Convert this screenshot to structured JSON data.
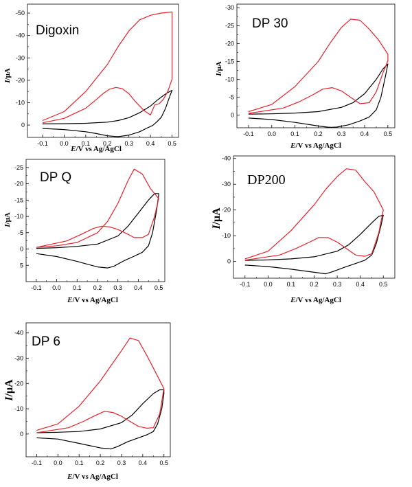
{
  "colors": {
    "cathodic_curve": "#000000",
    "anodic_curve": "#e8202a",
    "frame": "#000000"
  },
  "chart_data": [
    {
      "type": "line",
      "title": "Digoxin",
      "xlabel": {
        "italic": "E",
        "rest": "/V vs Ag/AgCl"
      },
      "ylabel": {
        "italic": "I",
        "rest": "/μA"
      },
      "xlim": [
        -0.17,
        0.53
      ],
      "ylim": [
        5.5,
        -54
      ],
      "xticks": [
        -0.1,
        0.0,
        0.1,
        0.2,
        0.3,
        0.4,
        0.5
      ],
      "xtick_labels": [
        "-0.1",
        "0.0",
        "0.1",
        "0.2",
        "0.3",
        "0.4",
        "0.5"
      ],
      "yticks": [
        0,
        -10,
        -20,
        -30,
        -40,
        -50
      ],
      "ytick_labels": [
        "0",
        "-10",
        "-20",
        "-30",
        "-40",
        "-50"
      ],
      "series": [
        {
          "color": "black",
          "x": [
            -0.1,
            0.0,
            0.1,
            0.2,
            0.25,
            0.3,
            0.35,
            0.4,
            0.43,
            0.46,
            0.48,
            0.5,
            0.5,
            0.49,
            0.47,
            0.45,
            0.43,
            0.41,
            0.38,
            0.35,
            0.3,
            0.25,
            0.2,
            0.15,
            0.1,
            0.0,
            -0.1
          ],
          "y": [
            -0.5,
            -0.6,
            -0.8,
            -1.3,
            -2,
            -3.3,
            -5.5,
            -8.5,
            -11,
            -13.2,
            -14.5,
            -15.5,
            -15.5,
            -13,
            -7.5,
            -3.5,
            -1.5,
            0.2,
            1.5,
            3,
            4.5,
            5.2,
            4.8,
            3.8,
            3,
            2,
            1.5
          ]
        },
        {
          "color": "red",
          "x": [
            -0.1,
            0.0,
            0.1,
            0.2,
            0.25,
            0.3,
            0.35,
            0.4,
            0.45,
            0.5,
            0.5,
            0.48,
            0.46,
            0.44,
            0.42,
            0.4,
            0.37,
            0.33,
            0.3,
            0.27,
            0.24,
            0.21,
            0.18,
            0.15,
            0.1,
            0.0,
            -0.1
          ],
          "y": [
            -2,
            -6,
            -15,
            -27,
            -35,
            -42,
            -47,
            -49,
            -50,
            -50.5,
            -20.5,
            -15,
            -11.5,
            -9.5,
            -9,
            -4.5,
            -6.5,
            -10.5,
            -14,
            -16.2,
            -16.8,
            -16,
            -14,
            -11.5,
            -7.5,
            -3,
            -1
          ]
        }
      ]
    },
    {
      "type": "line",
      "title": "DP 30",
      "xlabel": {
        "italic": "E",
        "rest": "/V vs Ag/AgCl"
      },
      "ylabel": {
        "italic": "I",
        "rest": "/μA"
      },
      "xlim": [
        -0.15,
        0.53
      ],
      "ylim": [
        3.5,
        -31
      ],
      "xticks": [
        -0.1,
        0.0,
        0.1,
        0.2,
        0.3,
        0.4,
        0.5
      ],
      "xtick_labels": [
        "-0.1",
        "0.0",
        "0.1",
        "0.2",
        "0.3",
        "0.4",
        "0.5"
      ],
      "yticks": [
        0,
        -5,
        -10,
        -15,
        -20,
        -25,
        -30
      ],
      "ytick_labels": [
        "0",
        "-5",
        "-10",
        "-15",
        "-20",
        "-25",
        "-30"
      ],
      "series": [
        {
          "color": "black",
          "x": [
            -0.1,
            0.0,
            0.1,
            0.2,
            0.3,
            0.35,
            0.4,
            0.45,
            0.48,
            0.5,
            0.5,
            0.49,
            0.47,
            0.45,
            0.42,
            0.38,
            0.33,
            0.28,
            0.25,
            0.2,
            0.1,
            0.0,
            -0.1
          ],
          "y": [
            -0.3,
            -0.4,
            -0.6,
            -1,
            -2.2,
            -3.5,
            -6,
            -10,
            -13,
            -14.3,
            -14.3,
            -11,
            -5,
            -1.5,
            0.5,
            1.6,
            2.7,
            3.3,
            3.4,
            3,
            2,
            1.2,
            0.8
          ]
        },
        {
          "color": "red",
          "x": [
            -0.1,
            0.0,
            0.1,
            0.2,
            0.25,
            0.3,
            0.34,
            0.38,
            0.42,
            0.46,
            0.5,
            0.5,
            0.48,
            0.45,
            0.42,
            0.38,
            0.34,
            0.3,
            0.26,
            0.22,
            0.18,
            0.12,
            0.05,
            -0.1
          ],
          "y": [
            -1,
            -3,
            -8,
            -15,
            -20,
            -24.5,
            -26.8,
            -26.5,
            -24,
            -21,
            -17,
            -15.2,
            -12,
            -6.5,
            -3.5,
            -3.2,
            -5,
            -6.8,
            -7.7,
            -7.3,
            -5.8,
            -3.8,
            -2,
            -0.5
          ]
        }
      ]
    },
    {
      "type": "line",
      "title": "DP Q",
      "xlabel": {
        "italic": "E",
        "rest": "/V vs Ag/AgCl"
      },
      "ylabel": {
        "italic": "I",
        "rest": "/μA"
      },
      "xlim": [
        -0.15,
        0.53
      ],
      "ylim": [
        10,
        -27.5
      ],
      "xticks": [
        -0.1,
        0.0,
        0.1,
        0.2,
        0.3,
        0.4,
        0.5
      ],
      "xtick_labels": [
        "-0.1",
        "0.0",
        "0.1",
        "0.2",
        "0.3",
        "0.4",
        "0.5"
      ],
      "yticks": [
        5,
        0,
        -5,
        -10,
        -15,
        -20,
        -25
      ],
      "ytick_labels": [
        "5",
        "0",
        "-5",
        "-10",
        "-15",
        "-20",
        "-25"
      ],
      "series": [
        {
          "color": "black",
          "x": [
            -0.1,
            0.0,
            0.1,
            0.2,
            0.3,
            0.35,
            0.4,
            0.45,
            0.48,
            0.5,
            0.5,
            0.49,
            0.47,
            0.45,
            0.42,
            0.38,
            0.33,
            0.28,
            0.25,
            0.2,
            0.1,
            0.0,
            -0.1
          ],
          "y": [
            -0.2,
            -0.4,
            -0.8,
            -1.5,
            -4,
            -7,
            -11,
            -15,
            -17,
            -17,
            -16.5,
            -12,
            -5,
            -1,
            1,
            2.2,
            3.6,
            5.3,
            5.8,
            5.5,
            3.8,
            2.3,
            1.4
          ]
        },
        {
          "color": "red",
          "x": [
            -0.1,
            0.0,
            0.1,
            0.2,
            0.25,
            0.3,
            0.35,
            0.38,
            0.42,
            0.46,
            0.5,
            0.5,
            0.48,
            0.45,
            0.42,
            0.38,
            0.34,
            0.3,
            0.26,
            0.22,
            0.18,
            0.12,
            0.05,
            -0.1
          ],
          "y": [
            -0.5,
            -1,
            -2,
            -5,
            -8.5,
            -14,
            -21,
            -24.5,
            -23,
            -18.5,
            -15.5,
            -15.5,
            -10,
            -4.5,
            -3.5,
            -3.5,
            -4.8,
            -6,
            -6.8,
            -7,
            -6.3,
            -4.5,
            -2.5,
            -0.5
          ]
        }
      ]
    },
    {
      "type": "line",
      "title": "DP200",
      "xlabel": {
        "italic": "E",
        "rest": "/V vs Ag/AgCl"
      },
      "ylabel": {
        "italic": "I",
        "rest": "/μA"
      },
      "xlim": [
        -0.15,
        0.55
      ],
      "ylim": [
        6.5,
        -41
      ],
      "xticks": [
        -0.1,
        0.0,
        0.1,
        0.2,
        0.3,
        0.4,
        0.5
      ],
      "xtick_labels": [
        "-0.1",
        "0.0",
        "0.1",
        "0.2",
        "0.3",
        "0.4",
        "0.5"
      ],
      "yticks": [
        0,
        -10,
        -20,
        -30,
        -40
      ],
      "ytick_labels": [
        "0",
        "-10",
        "-20",
        "-30",
        "-40"
      ],
      "series": [
        {
          "color": "black",
          "x": [
            -0.1,
            0.0,
            0.1,
            0.2,
            0.3,
            0.35,
            0.4,
            0.45,
            0.48,
            0.5,
            0.5,
            0.49,
            0.47,
            0.45,
            0.42,
            0.38,
            0.33,
            0.28,
            0.25,
            0.2,
            0.1,
            0.0,
            -0.1
          ],
          "y": [
            -0.4,
            -0.6,
            -1,
            -1.8,
            -4,
            -6.5,
            -10.5,
            -15,
            -17.5,
            -18,
            -18,
            -14,
            -7,
            -2.5,
            -0.5,
            0.8,
            2.3,
            4,
            4.8,
            4.2,
            3,
            2,
            1.4
          ]
        },
        {
          "color": "red",
          "x": [
            -0.1,
            0.0,
            0.1,
            0.2,
            0.25,
            0.3,
            0.34,
            0.38,
            0.42,
            0.46,
            0.5,
            0.5,
            0.48,
            0.45,
            0.42,
            0.38,
            0.34,
            0.3,
            0.26,
            0.22,
            0.18,
            0.12,
            0.05,
            -0.1
          ],
          "y": [
            -1,
            -4,
            -12,
            -22,
            -28,
            -33,
            -36,
            -35.5,
            -31,
            -27,
            -20,
            -20,
            -11,
            -3,
            -2,
            -2.5,
            -5,
            -7.5,
            -9.3,
            -9.3,
            -7.5,
            -5,
            -2.5,
            -0.5
          ]
        }
      ]
    },
    {
      "type": "line",
      "title": "DP 6",
      "xlabel": {
        "italic": "E",
        "rest": "/V vs Ag/AgCl"
      },
      "ylabel": {
        "italic": "I",
        "rest": "/μA"
      },
      "xlim": [
        -0.15,
        0.53
      ],
      "ylim": [
        9,
        -44
      ],
      "xticks": [
        -0.1,
        0.0,
        0.1,
        0.2,
        0.3,
        0.4,
        0.5
      ],
      "xtick_labels": [
        "-0.1",
        "0.0",
        "0.1",
        "0.2",
        "0.3",
        "0.4",
        "0.5"
      ],
      "yticks": [
        0,
        -10,
        -20,
        -30,
        -40
      ],
      "ytick_labels": [
        "0",
        "-10",
        "-20",
        "-30",
        "-40"
      ],
      "series": [
        {
          "color": "black",
          "x": [
            -0.1,
            0.0,
            0.1,
            0.2,
            0.3,
            0.35,
            0.4,
            0.45,
            0.48,
            0.5,
            0.5,
            0.49,
            0.47,
            0.45,
            0.42,
            0.38,
            0.33,
            0.28,
            0.25,
            0.2,
            0.1,
            0.0,
            -0.1
          ],
          "y": [
            -0.5,
            -0.7,
            -1,
            -2,
            -4.5,
            -7.5,
            -12,
            -16,
            -17.5,
            -17.5,
            -16,
            -10,
            -4,
            -1,
            0.3,
            1.5,
            3,
            5,
            5.9,
            5.5,
            3.7,
            2,
            1.5
          ]
        },
        {
          "color": "red",
          "x": [
            -0.1,
            0.0,
            0.1,
            0.2,
            0.25,
            0.3,
            0.34,
            0.38,
            0.42,
            0.46,
            0.5,
            0.5,
            0.48,
            0.45,
            0.42,
            0.38,
            0.34,
            0.3,
            0.26,
            0.22,
            0.18,
            0.12,
            0.05,
            -0.1
          ],
          "y": [
            -1.5,
            -4,
            -11,
            -21,
            -27,
            -33,
            -38,
            -37,
            -31,
            -24.5,
            -18,
            -18,
            -8,
            -2.5,
            -2.3,
            -3,
            -5,
            -7,
            -8.5,
            -9,
            -7.5,
            -5,
            -2.5,
            -0.5
          ]
        }
      ]
    }
  ]
}
